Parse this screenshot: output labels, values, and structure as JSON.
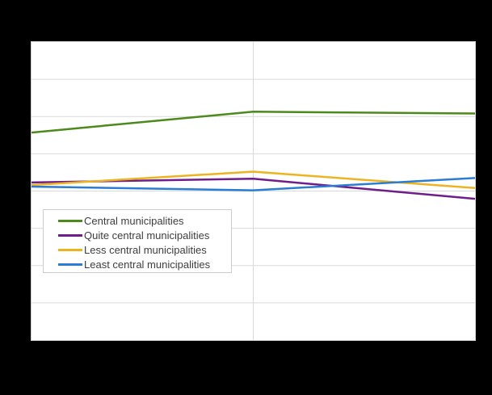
{
  "colors": {
    "page_background": "#000000",
    "plot_background": "#ffffff",
    "plot_border": "#cfcfcf",
    "gridline": "#d9d9d9",
    "legend_border": "#cccccc",
    "legend_text": "#3d3d3d"
  },
  "chart_data": {
    "type": "line",
    "title": "",
    "xlabel": "",
    "ylabel": "",
    "x": [
      0,
      1,
      2
    ],
    "x_tick_labels": [
      "",
      "",
      ""
    ],
    "xlim": [
      0,
      2
    ],
    "ylim": [
      0,
      8
    ],
    "y_gridline_step": 1,
    "x_gridlines_at": [
      1
    ],
    "grid": true,
    "axis_tick_labels_visible": false,
    "value_scale_note": "axis labels not visible; values estimated in gridline units from plot bottom",
    "series": [
      {
        "name": "Central municipalities",
        "color": "#4c8a1c",
        "values": [
          5.57,
          6.13,
          6.08
        ]
      },
      {
        "name": "Quite central municipalities",
        "color": "#6f1d8b",
        "values": [
          4.23,
          4.33,
          3.79
        ]
      },
      {
        "name": "Less central municipalities",
        "color": "#ecb421",
        "values": [
          4.16,
          4.52,
          4.08
        ]
      },
      {
        "name": "Least central municipalities",
        "color": "#2a7dd2",
        "values": [
          4.12,
          4.02,
          4.35
        ]
      }
    ],
    "legend_position": "inside-left-below-center"
  }
}
